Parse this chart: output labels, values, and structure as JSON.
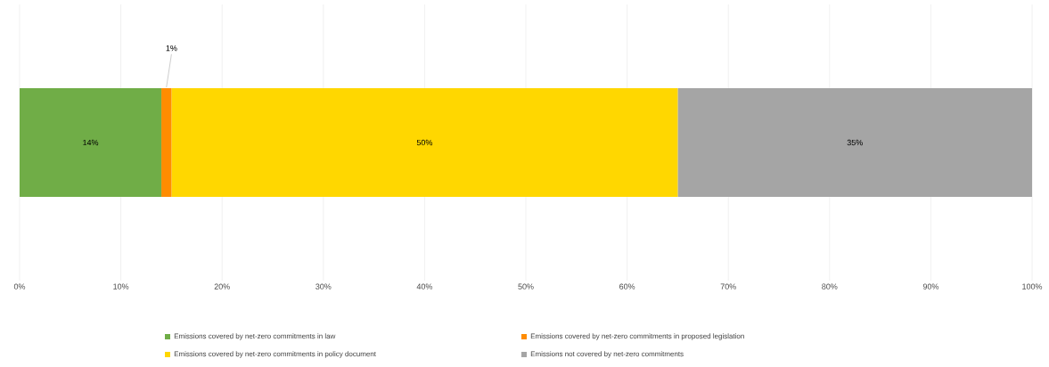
{
  "chart_data": {
    "type": "bar",
    "orientation": "horizontal",
    "stacked": true,
    "categories": [
      null
    ],
    "series": [
      {
        "name": "Emissions covered by net-zero commitments in law",
        "color": "#70ad47",
        "values": [
          14
        ],
        "value_labels": [
          "14%"
        ]
      },
      {
        "name": "Emissions covered by net-zero commitments in proposed legislation",
        "color": "#ff8c00",
        "values": [
          1
        ],
        "value_labels": [
          "1%"
        ]
      },
      {
        "name": "Emissions covered by net-zero commitments in policy document",
        "color": "#ffd700",
        "values": [
          50
        ],
        "value_labels": [
          "50%"
        ]
      },
      {
        "name": "Emissions not covered by net-zero commitments",
        "color": "#a5a5a5",
        "values": [
          35
        ],
        "value_labels": [
          "35%"
        ]
      }
    ],
    "xlim": [
      0,
      100
    ],
    "xticks": [
      {
        "value": 0,
        "label": "0%"
      },
      {
        "value": 10,
        "label": "10%"
      },
      {
        "value": 20,
        "label": "20%"
      },
      {
        "value": 30,
        "label": "30%"
      },
      {
        "value": 40,
        "label": "40%"
      },
      {
        "value": 50,
        "label": "50%"
      },
      {
        "value": 60,
        "label": "60%"
      },
      {
        "value": 70,
        "label": "70%"
      },
      {
        "value": 80,
        "label": "80%"
      },
      {
        "value": 90,
        "label": "90%"
      },
      {
        "value": 100,
        "label": "100%"
      }
    ],
    "grid": "x",
    "legend": "bottom"
  }
}
